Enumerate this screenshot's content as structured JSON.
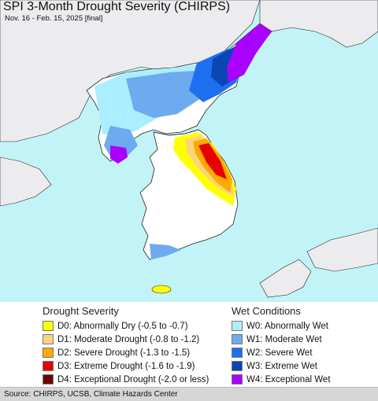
{
  "title": "SPI 3-Month Drought Severity (CHIRPS)",
  "subtitle": "Nov. 16 - Feb. 15, 2025 [final]",
  "colors": {
    "water": "#c2f4f7",
    "land_outside": "#ececef",
    "land_normal": "#ffffff",
    "border": "#222222"
  },
  "drought_legend": {
    "heading": "Drought Severity",
    "items": [
      {
        "label": "D0: Abnormally Dry (-0.5 to -0.7)",
        "color": "#ffff00"
      },
      {
        "label": "D1: Moderate Drought (-0.8 to -1.2)",
        "color": "#fcd37f"
      },
      {
        "label": "D2: Severe Drought (-1.3 to -1.5)",
        "color": "#ffaa00"
      },
      {
        "label": "D3: Extreme Drought (-1.6 to -1.9)",
        "color": "#e60000"
      },
      {
        "label": "D4: Exceptional Drought (-2.0 or less)",
        "color": "#730000"
      }
    ]
  },
  "wet_legend": {
    "heading": "Wet Conditions",
    "items": [
      {
        "label": "W0: Abnormally Wet",
        "color": "#aaeeff"
      },
      {
        "label": "W1: Moderate Wet",
        "color": "#6eaaf0"
      },
      {
        "label": "W2: Severe Wet",
        "color": "#1e6ef0"
      },
      {
        "label": "W3: Extreme Wet",
        "color": "#0a46b4"
      },
      {
        "label": "W4: Exceptional Wet",
        "color": "#aa00ff"
      }
    ]
  },
  "source": "Source: CHIRPS, UCSB, Climate Hazards Center"
}
